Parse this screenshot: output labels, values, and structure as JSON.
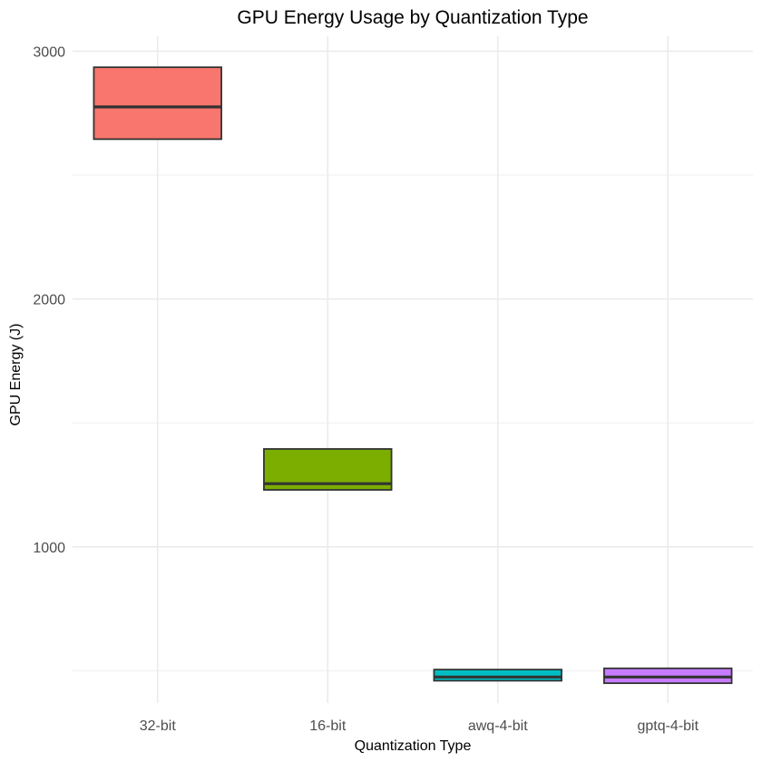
{
  "chart_data": {
    "type": "boxplot",
    "title": "GPU Energy Usage by Quantization Type",
    "xlabel": "Quantization Type",
    "ylabel": "GPU Energy (J)",
    "categories": [
      "32-bit",
      "16-bit",
      "awq-4-bit",
      "gptq-4-bit"
    ],
    "colors": [
      "#F8766D",
      "#7CAE00",
      "#00BFC4",
      "#C77CFF"
    ],
    "boxes": [
      {
        "category": "32-bit",
        "q1": 2645,
        "median": 2775,
        "q3": 2935
      },
      {
        "category": "16-bit",
        "q1": 1230,
        "median": 1255,
        "q3": 1395
      },
      {
        "category": "awq-4-bit",
        "q1": 460,
        "median": 475,
        "q3": 505
      },
      {
        "category": "gptq-4-bit",
        "q1": 450,
        "median": 475,
        "q3": 510
      }
    ],
    "ylim": [
      370,
      3060
    ],
    "yticks": [
      1000,
      2000,
      3000
    ],
    "yticks_minor": [
      500,
      1500,
      2500
    ],
    "grid": true,
    "legend": "none"
  }
}
